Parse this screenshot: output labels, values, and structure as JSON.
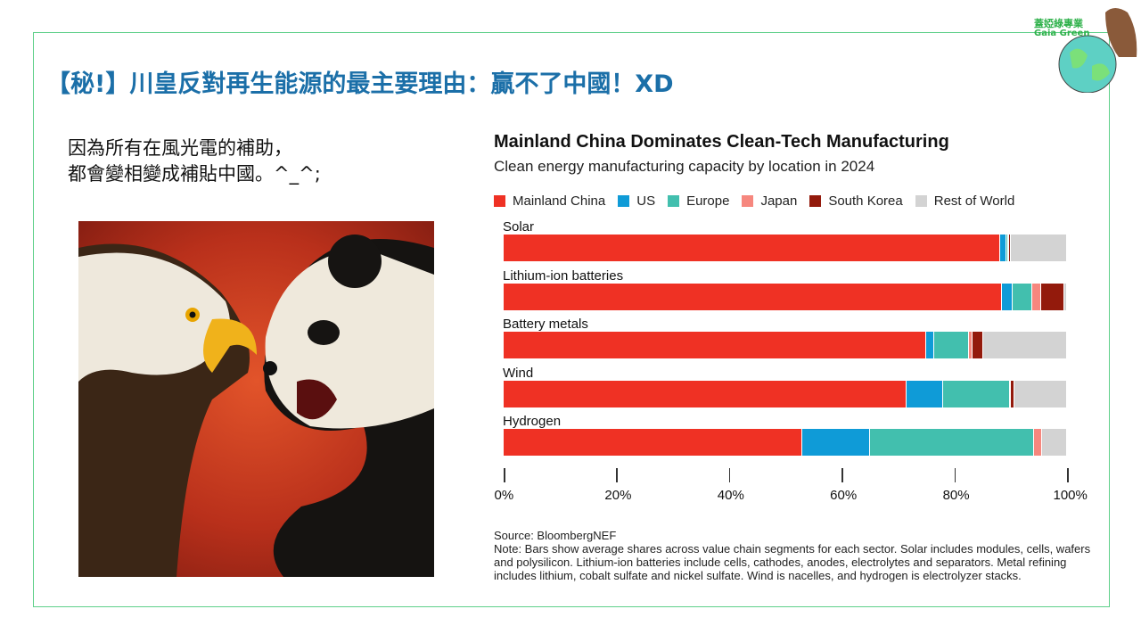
{
  "slide": {
    "title": "【秘!】川皇反對再生能源的最主要理由：贏不了中國！XD",
    "left_text": [
      "因為所有在風光電的補助，",
      "都會變相變成補貼中國。^_^;"
    ],
    "logo": {
      "cn": "蓋婭綠專業",
      "en": "Gaia Green"
    }
  },
  "chart_data": {
    "type": "bar",
    "orientation": "horizontal",
    "stacked": true,
    "title": "Mainland China Dominates Clean-Tech Manufacturing",
    "subtitle": "Clean energy manufacturing capacity by location in 2024",
    "categories": [
      "Solar",
      "Lithium-ion batteries",
      "Battery metals",
      "Wind",
      "Hydrogen"
    ],
    "series": [
      {
        "name": "Mainland China",
        "color": "#ef3124",
        "values": [
          88.1,
          88.4,
          75.0,
          71.5,
          53.0
        ]
      },
      {
        "name": "US",
        "color": "#0f9bd7",
        "values": [
          1.1,
          2.0,
          1.4,
          6.6,
          12.0
        ]
      },
      {
        "name": "Europe",
        "color": "#42bfae",
        "values": [
          0.3,
          3.5,
          6.2,
          11.8,
          29.2
        ]
      },
      {
        "name": "Japan",
        "color": "#f6877e",
        "values": [
          0.2,
          1.5,
          0.7,
          0.1,
          1.4
        ]
      },
      {
        "name": "South Korea",
        "color": "#931a0c",
        "values": [
          0.4,
          4.1,
          1.8,
          0.6,
          0.0
        ]
      },
      {
        "name": "Rest of World",
        "color": "#d3d3d3",
        "values": [
          9.9,
          0.5,
          14.9,
          9.4,
          4.4
        ]
      }
    ],
    "xlim": [
      0,
      100
    ],
    "xticks": [
      "0%",
      "20%",
      "40%",
      "60%",
      "80%",
      "100%"
    ],
    "legend": "top",
    "source": "Source: BloombergNEF",
    "note": "Note: Bars show average shares across value chain segments for each sector. Solar includes modules, cells, wafers and polysilicon. Lithium-ion batteries include cells, cathodes, anodes, electrolytes and separators. Metal refining includes lithium, cobalt sulfate and nickel sulfate. Wind is nacelles, and hydrogen is electrolyzer stacks."
  }
}
